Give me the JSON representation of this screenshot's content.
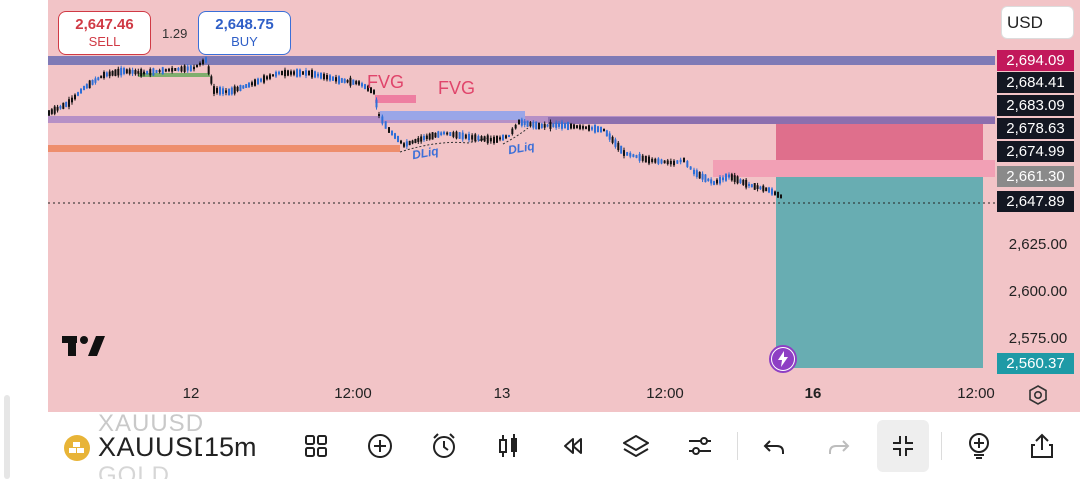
{
  "trade_panel": {
    "sell_price": "2,647.46",
    "sell_label": "SELL",
    "spread": "1.29",
    "buy_price": "2,648.75",
    "buy_label": "BUY"
  },
  "currency": "USD",
  "price_tags": [
    {
      "value": "2,694.09",
      "color": "#c2185b"
    },
    {
      "value": "2,684.41",
      "color": "#131722"
    },
    {
      "value": "2,683.09",
      "color": "#131722"
    },
    {
      "value": "2,678.63",
      "color": "#131722"
    },
    {
      "value": "2,674.99",
      "color": "#131722"
    },
    {
      "value": "2,661.30",
      "color": "#8a8a8a"
    },
    {
      "value": "2,647.89",
      "color": "#131722"
    },
    {
      "value": "2,560.37",
      "color": "#1e9aa6"
    }
  ],
  "price_axis": [
    "2,625.00",
    "2,600.00",
    "2,575.00"
  ],
  "time_axis": [
    "12",
    "12:00",
    "13",
    "12:00",
    "16",
    "12:00"
  ],
  "annotations": {
    "fvg_1": "FVG",
    "fvg_2": "FVG",
    "dliq_1": "DLiq",
    "dliq_2": "DLiq"
  },
  "toolbar": {
    "symbol": "XAUUSD",
    "symbol_ghost_top": "XAUUSD",
    "symbol_ghost_bottom": "GOLD",
    "interval": "15m",
    "buttons": [
      {
        "name": "indicators-templates-icon"
      },
      {
        "name": "add-indicator-icon"
      },
      {
        "name": "alert-clock-icon"
      },
      {
        "name": "candle-style-icon"
      },
      {
        "name": "replay-icon"
      },
      {
        "name": "layers-icon"
      },
      {
        "name": "settings-sliders-icon"
      },
      {
        "name": "undo-icon"
      },
      {
        "name": "redo-icon"
      },
      {
        "name": "exit-fullscreen-icon"
      },
      {
        "name": "add-object-icon"
      },
      {
        "name": "share-icon"
      }
    ]
  },
  "colors": {
    "chart_bg": "#f2c4c7",
    "stop_zone": "#e0718e",
    "target_zone": "#6aaeb3",
    "purple_level": "#7e7bb3",
    "orange_level": "#ee8f6e",
    "blue_fvg": "#9ea8e6"
  }
}
